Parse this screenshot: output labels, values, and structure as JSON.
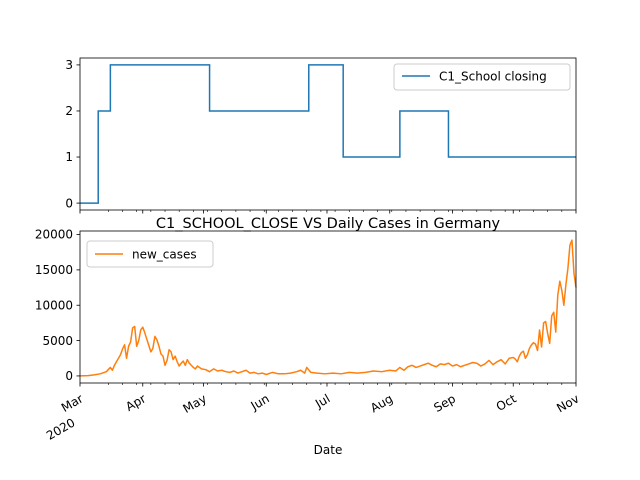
{
  "figure": {
    "title": "C1_SCHOOL_CLOSE VS Daily Cases in Germany",
    "xlabel": "Date"
  },
  "chart_data": [
    {
      "type": "line",
      "x_range": [
        "2020-03-01",
        "2020-11-01"
      ],
      "ylim": [
        -0.15,
        3.15
      ],
      "yticks": [
        0,
        1,
        2,
        3
      ],
      "xtick_labels_shown": false,
      "legend": "top-right",
      "series": [
        {
          "name": "C1_School closing",
          "color": "#1f77b4",
          "x": [
            "2020-03-01",
            "2020-03-10",
            "2020-03-10",
            "2020-03-16",
            "2020-03-16",
            "2020-05-04",
            "2020-05-04",
            "2020-06-22",
            "2020-06-22",
            "2020-07-09",
            "2020-07-09",
            "2020-08-06",
            "2020-08-06",
            "2020-08-30",
            "2020-08-30",
            "2020-11-01"
          ],
          "y": [
            0,
            0,
            2,
            2,
            3,
            3,
            2,
            2,
            3,
            3,
            1,
            1,
            2,
            2,
            1,
            1
          ]
        }
      ]
    },
    {
      "type": "line",
      "x_range": [
        "2020-03-01",
        "2020-11-01"
      ],
      "ylim": [
        -1000,
        20500
      ],
      "yticks": [
        0,
        5000,
        10000,
        15000,
        20000
      ],
      "xticks": [
        {
          "date": "2020-03-01",
          "label": "Mar",
          "sublabel": "2020"
        },
        {
          "date": "2020-04-01",
          "label": "Apr"
        },
        {
          "date": "2020-05-01",
          "label": "May"
        },
        {
          "date": "2020-06-01",
          "label": "Jun"
        },
        {
          "date": "2020-07-01",
          "label": "Jul"
        },
        {
          "date": "2020-08-01",
          "label": "Aug"
        },
        {
          "date": "2020-09-01",
          "label": "Sep"
        },
        {
          "date": "2020-10-01",
          "label": "Oct"
        },
        {
          "date": "2020-11-01",
          "label": "Nov"
        }
      ],
      "legend": "top-left",
      "series": [
        {
          "name": "new_cases",
          "color": "#ff7f0e",
          "x": [
            "2020-03-01",
            "2020-03-05",
            "2020-03-08",
            "2020-03-11",
            "2020-03-14",
            "2020-03-16",
            "2020-03-17",
            "2020-03-18",
            "2020-03-19",
            "2020-03-20",
            "2020-03-21",
            "2020-03-22",
            "2020-03-23",
            "2020-03-24",
            "2020-03-25",
            "2020-03-26",
            "2020-03-27",
            "2020-03-28",
            "2020-03-29",
            "2020-03-30",
            "2020-03-31",
            "2020-04-01",
            "2020-04-02",
            "2020-04-03",
            "2020-04-04",
            "2020-04-05",
            "2020-04-06",
            "2020-04-07",
            "2020-04-08",
            "2020-04-09",
            "2020-04-10",
            "2020-04-11",
            "2020-04-12",
            "2020-04-13",
            "2020-04-14",
            "2020-04-15",
            "2020-04-16",
            "2020-04-17",
            "2020-04-18",
            "2020-04-19",
            "2020-04-20",
            "2020-04-21",
            "2020-04-22",
            "2020-04-23",
            "2020-04-24",
            "2020-04-25",
            "2020-04-26",
            "2020-04-27",
            "2020-04-28",
            "2020-04-30",
            "2020-05-02",
            "2020-05-04",
            "2020-05-06",
            "2020-05-08",
            "2020-05-10",
            "2020-05-12",
            "2020-05-14",
            "2020-05-16",
            "2020-05-18",
            "2020-05-20",
            "2020-05-22",
            "2020-05-24",
            "2020-05-26",
            "2020-05-28",
            "2020-05-30",
            "2020-06-01",
            "2020-06-04",
            "2020-06-07",
            "2020-06-10",
            "2020-06-13",
            "2020-06-16",
            "2020-06-18",
            "2020-06-20",
            "2020-06-21",
            "2020-06-23",
            "2020-06-26",
            "2020-06-30",
            "2020-07-04",
            "2020-07-08",
            "2020-07-12",
            "2020-07-16",
            "2020-07-20",
            "2020-07-24",
            "2020-07-28",
            "2020-08-01",
            "2020-08-04",
            "2020-08-06",
            "2020-08-08",
            "2020-08-10",
            "2020-08-12",
            "2020-08-14",
            "2020-08-16",
            "2020-08-18",
            "2020-08-20",
            "2020-08-22",
            "2020-08-24",
            "2020-08-26",
            "2020-08-28",
            "2020-08-30",
            "2020-09-01",
            "2020-09-03",
            "2020-09-05",
            "2020-09-07",
            "2020-09-09",
            "2020-09-11",
            "2020-09-13",
            "2020-09-15",
            "2020-09-17",
            "2020-09-19",
            "2020-09-21",
            "2020-09-23",
            "2020-09-25",
            "2020-09-27",
            "2020-09-29",
            "2020-10-01",
            "2020-10-02",
            "2020-10-03",
            "2020-10-04",
            "2020-10-05",
            "2020-10-06",
            "2020-10-07",
            "2020-10-08",
            "2020-10-09",
            "2020-10-10",
            "2020-10-11",
            "2020-10-12",
            "2020-10-13",
            "2020-10-14",
            "2020-10-15",
            "2020-10-16",
            "2020-10-17",
            "2020-10-18",
            "2020-10-19",
            "2020-10-20",
            "2020-10-21",
            "2020-10-22",
            "2020-10-23",
            "2020-10-24",
            "2020-10-25",
            "2020-10-26",
            "2020-10-27",
            "2020-10-28",
            "2020-10-29",
            "2020-10-30",
            "2020-10-31",
            "2020-11-01"
          ],
          "y": [
            0,
            50,
            150,
            300,
            600,
            1200,
            800,
            1500,
            2000,
            2500,
            3000,
            3800,
            4400,
            2500,
            4200,
            4800,
            6800,
            7000,
            4200,
            5000,
            6500,
            6900,
            6100,
            5200,
            4300,
            3400,
            3900,
            5600,
            5100,
            4200,
            3100,
            2800,
            1500,
            2200,
            3700,
            3400,
            2300,
            2800,
            2000,
            1400,
            1800,
            2100,
            1500,
            2300,
            1800,
            1500,
            1200,
            1000,
            1400,
            1000,
            900,
            600,
            1000,
            700,
            800,
            600,
            500,
            700,
            400,
            600,
            800,
            400,
            500,
            300,
            400,
            200,
            500,
            300,
            300,
            400,
            600,
            800,
            400,
            1200,
            500,
            400,
            300,
            400,
            300,
            500,
            400,
            500,
            700,
            600,
            800,
            700,
            1200,
            800,
            1300,
            1500,
            1200,
            1400,
            1600,
            1800,
            1500,
            1300,
            1700,
            1600,
            1800,
            1400,
            1600,
            1300,
            1500,
            1700,
            1900,
            1800,
            1400,
            1700,
            2200,
            1600,
            2000,
            2300,
            1700,
            2500,
            2600,
            2400,
            2000,
            2800,
            3300,
            3500,
            2500,
            3000,
            3900,
            4400,
            4700,
            4500,
            3600,
            6500,
            4100,
            7500,
            7700,
            6000,
            4600,
            8500,
            9000,
            6200,
            11400,
            13400,
            12100,
            10000,
            12900,
            15200,
            18500,
            19200,
            14500,
            12500
          ]
        }
      ]
    }
  ]
}
